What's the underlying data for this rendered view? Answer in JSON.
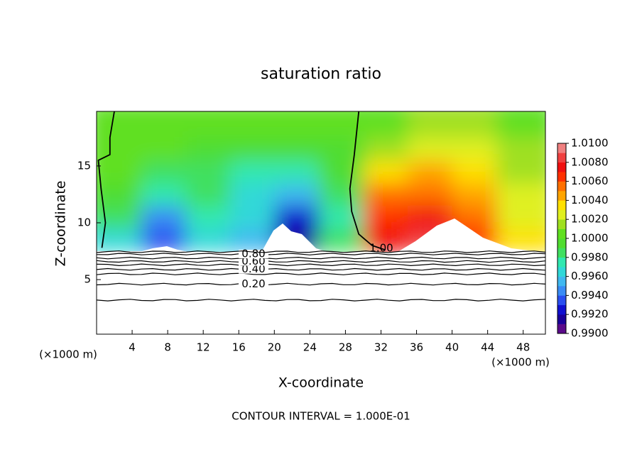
{
  "chart_data": {
    "type": "contour",
    "title": "saturation ratio",
    "x_label": "X-coordinate",
    "y_label": "Z-coordinate",
    "x_unit_label": "(×1000 m)",
    "x_unit_label_right": "(×1000 m)",
    "footer": "CONTOUR INTERVAL = 1.000E-01",
    "xlim": [
      0,
      50.5
    ],
    "ylim": [
      0.2,
      19.8
    ],
    "xticks": [
      4,
      8,
      12,
      16,
      20,
      24,
      28,
      32,
      36,
      40,
      44,
      48
    ],
    "yticks": [
      5,
      10,
      15
    ],
    "field": {
      "x_edges": [
        0,
        5,
        10,
        15,
        20,
        25,
        30,
        35,
        40,
        45,
        50.5
      ],
      "z_edges": [
        7.5,
        9.5,
        11.5,
        13.5,
        15.5,
        17.5,
        19.8
      ],
      "values": [
        [
          0.996,
          0.993,
          0.996,
          0.995,
          0.991,
          0.998,
          1.007,
          1.008,
          1.006,
          1.003
        ],
        [
          0.998,
          0.994,
          0.997,
          0.996,
          0.992,
          0.997,
          1.006,
          1.007,
          1.005,
          1.002
        ],
        [
          0.999,
          0.997,
          0.998,
          0.996,
          0.995,
          0.998,
          1.005,
          1.005,
          1.004,
          1.002
        ],
        [
          1.0,
          0.9985,
          0.998,
          0.997,
          0.997,
          0.999,
          1.003,
          1.004,
          1.003,
          1.001
        ],
        [
          1.0,
          1.0,
          0.9995,
          0.999,
          0.999,
          0.9995,
          1.001,
          1.002,
          1.002,
          1.001
        ],
        [
          1.0,
          1.0,
          1.0,
          1.0,
          1.0,
          1.0,
          1.0005,
          1.001,
          1.001,
          1.0005
        ]
      ]
    },
    "colorbar": {
      "bounds": [
        0.99,
        0.991,
        0.992,
        0.993,
        0.994,
        0.995,
        0.996,
        0.997,
        0.998,
        0.999,
        1.0,
        1.001,
        1.002,
        1.003,
        1.004,
        1.005,
        1.006,
        1.007,
        1.008,
        1.009,
        1.01
      ],
      "colors": [
        "#5a0a8a",
        "#1a0099",
        "#1010d0",
        "#2a4ff0",
        "#3a8cf5",
        "#40b8f0",
        "#30d8d8",
        "#30e8b0",
        "#40e060",
        "#50dd30",
        "#60e020",
        "#a0e020",
        "#e0f020",
        "#ffe000",
        "#ffa500",
        "#ff7000",
        "#ff3000",
        "#f01010",
        "#f04040",
        "#f08080"
      ],
      "ticks": [
        {
          "value": 0.99,
          "label": "0.9900"
        },
        {
          "value": 0.992,
          "label": "0.9920"
        },
        {
          "value": 0.994,
          "label": "0.9940"
        },
        {
          "value": 0.996,
          "label": "0.9960"
        },
        {
          "value": 0.998,
          "label": "0.9980"
        },
        {
          "value": 1.0,
          "label": "1.0000"
        },
        {
          "value": 1.002,
          "label": "1.0020"
        },
        {
          "value": 1.004,
          "label": "1.0040"
        },
        {
          "value": 1.006,
          "label": "1.0060"
        },
        {
          "value": 1.008,
          "label": "1.0080"
        },
        {
          "value": 1.01,
          "label": "1.0100"
        }
      ]
    },
    "contour_lines": {
      "z": [
        3.2,
        4.6,
        5.5,
        5.9,
        6.3,
        6.6,
        6.9,
        7.25,
        7.45
      ],
      "labels": [
        null,
        "0.20",
        null,
        "0.40",
        null,
        "0.60",
        null,
        "0.80",
        null
      ]
    },
    "unit_contour": {
      "label": "1.00",
      "x": [
        2,
        1.5,
        1.5,
        0.2,
        0.5,
        1,
        0.6,
        null,
        29.5,
        29,
        28.5,
        28.7,
        29.5,
        31,
        32.5
      ],
      "z": [
        19.8,
        17.5,
        16,
        15.5,
        13,
        10,
        7.8,
        null,
        19.8,
        16,
        13,
        11,
        9,
        8,
        7.6
      ]
    }
  }
}
